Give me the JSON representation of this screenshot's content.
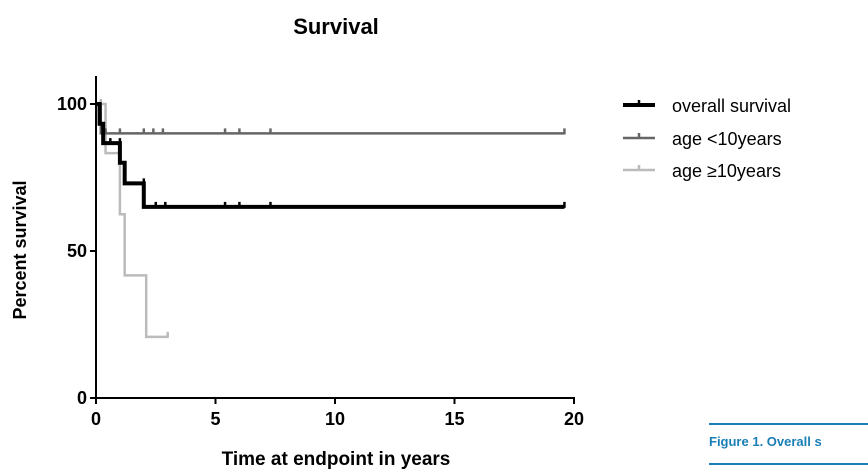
{
  "caption": "Figure 1. Overall s",
  "chart_data": {
    "type": "line",
    "title": "Survival",
    "xlabel": "Time at endpoint in years",
    "ylabel": "Percent survival",
    "xlim": [
      0,
      20
    ],
    "ylim": [
      0,
      100
    ],
    "xticks": [
      0,
      5,
      10,
      15,
      20
    ],
    "yticks": [
      0,
      50,
      100
    ],
    "grid": false,
    "legend_position": "top-right",
    "series": [
      {
        "name": "overall survival",
        "color": "#000000",
        "step_x": [
          0,
          0.15,
          0.3,
          0.5,
          1.0,
          1.2,
          2.0,
          19.6
        ],
        "step_y": [
          100,
          93.3,
          86.7,
          86.7,
          80,
          73,
          65,
          65
        ],
        "censor_x": [
          0.6,
          1.0,
          2.0,
          2.5,
          2.9,
          5.4,
          6.0,
          7.3,
          19.6
        ],
        "censor_y": [
          86.7,
          86.7,
          73,
          65,
          65,
          65,
          65,
          65,
          65
        ]
      },
      {
        "name": "age <10years",
        "color": "#666666",
        "step_x": [
          0,
          0.2,
          19.6
        ],
        "step_y": [
          100,
          90,
          90
        ],
        "censor_x": [
          0.4,
          1.0,
          2.0,
          2.4,
          2.8,
          5.4,
          6.0,
          7.3,
          19.6
        ],
        "censor_y": [
          90,
          90,
          90,
          90,
          90,
          90,
          90,
          90,
          90
        ]
      },
      {
        "name": "age ≥10years",
        "color": "#bbbbbb",
        "step_x": [
          0,
          0.4,
          1.0,
          1.2,
          2.1,
          3.0
        ],
        "step_y": [
          100,
          83.3,
          62.5,
          41.7,
          20.8,
          20.8
        ],
        "censor_x": [
          0.2,
          3.0
        ],
        "censor_y": [
          100,
          20.8
        ]
      }
    ]
  }
}
